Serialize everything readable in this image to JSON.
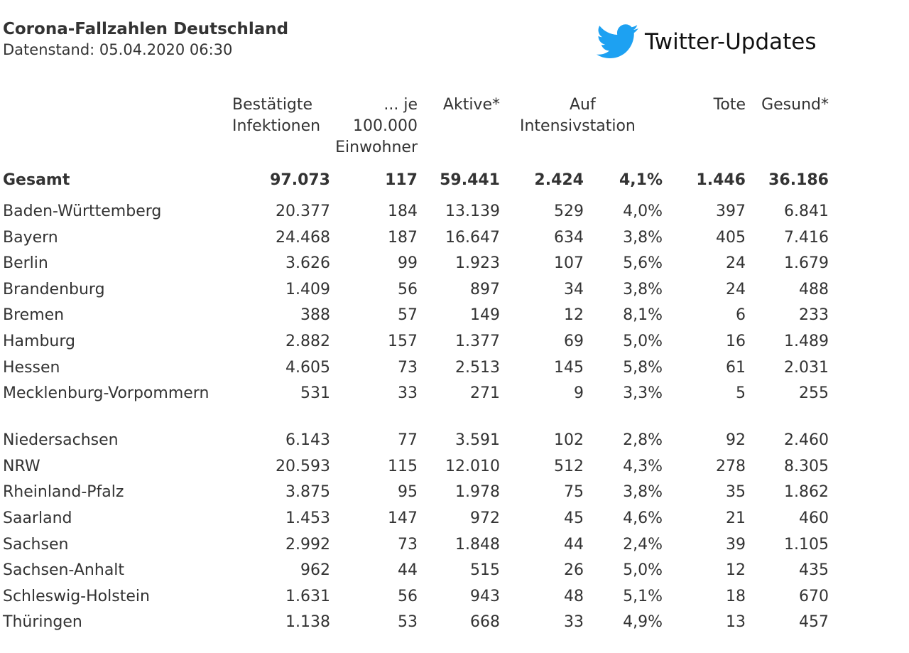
{
  "header": {
    "title": "Corona-Fallzahlen Deutschland",
    "subtitle": "Datenstand: 05.04.2020 06:30"
  },
  "twitter": {
    "label": "Twitter-Updates",
    "icon": "twitter-bird-icon",
    "color": "#1da1f2"
  },
  "table": {
    "columns": {
      "confirmed": [
        "Bestätigte",
        "Infektionen"
      ],
      "per100k": [
        "... je",
        "100.000",
        "Einwohner"
      ],
      "active": "Aktive*",
      "icu": [
        "Auf",
        "Intensivstation"
      ],
      "deaths": "Tote",
      "recovered": "Gesund*"
    },
    "total": {
      "name": "Gesamt",
      "confirmed": "97.073",
      "per100k": "117",
      "active": "59.441",
      "icu": "2.424",
      "icu_pct": "4,1%",
      "deaths": "1.446",
      "recovered": "36.186"
    },
    "rows": [
      {
        "name": "Baden-Württemberg",
        "confirmed": "20.377",
        "per100k": "184",
        "active": "13.139",
        "icu": "529",
        "icu_pct": "4,0%",
        "deaths": "397",
        "recovered": "6.841"
      },
      {
        "name": "Bayern",
        "confirmed": "24.468",
        "per100k": "187",
        "active": "16.647",
        "icu": "634",
        "icu_pct": "3,8%",
        "deaths": "405",
        "recovered": "7.416"
      },
      {
        "name": "Berlin",
        "confirmed": "3.626",
        "per100k": "99",
        "active": "1.923",
        "icu": "107",
        "icu_pct": "5,6%",
        "deaths": "24",
        "recovered": "1.679"
      },
      {
        "name": "Brandenburg",
        "confirmed": "1.409",
        "per100k": "56",
        "active": "897",
        "icu": "34",
        "icu_pct": "3,8%",
        "deaths": "24",
        "recovered": "488"
      },
      {
        "name": "Bremen",
        "confirmed": "388",
        "per100k": "57",
        "active": "149",
        "icu": "12",
        "icu_pct": "8,1%",
        "deaths": "6",
        "recovered": "233"
      },
      {
        "name": "Hamburg",
        "confirmed": "2.882",
        "per100k": "157",
        "active": "1.377",
        "icu": "69",
        "icu_pct": "5,0%",
        "deaths": "16",
        "recovered": "1.489"
      },
      {
        "name": "Hessen",
        "confirmed": "4.605",
        "per100k": "73",
        "active": "2.513",
        "icu": "145",
        "icu_pct": "5,8%",
        "deaths": "61",
        "recovered": "2.031"
      },
      {
        "name": "Mecklenburg-Vorpommern",
        "confirmed": "531",
        "per100k": "33",
        "active": "271",
        "icu": "9",
        "icu_pct": "3,3%",
        "deaths": "5",
        "recovered": "255"
      },
      {
        "name": "Niedersachsen",
        "confirmed": "6.143",
        "per100k": "77",
        "active": "3.591",
        "icu": "102",
        "icu_pct": "2,8%",
        "deaths": "92",
        "recovered": "2.460"
      },
      {
        "name": "NRW",
        "confirmed": "20.593",
        "per100k": "115",
        "active": "12.010",
        "icu": "512",
        "icu_pct": "4,3%",
        "deaths": "278",
        "recovered": "8.305"
      },
      {
        "name": "Rheinland-Pfalz",
        "confirmed": "3.875",
        "per100k": "95",
        "active": "1.978",
        "icu": "75",
        "icu_pct": "3,8%",
        "deaths": "35",
        "recovered": "1.862"
      },
      {
        "name": "Saarland",
        "confirmed": "1.453",
        "per100k": "147",
        "active": "972",
        "icu": "45",
        "icu_pct": "4,6%",
        "deaths": "21",
        "recovered": "460"
      },
      {
        "name": "Sachsen",
        "confirmed": "2.992",
        "per100k": "73",
        "active": "1.848",
        "icu": "44",
        "icu_pct": "2,4%",
        "deaths": "39",
        "recovered": "1.105"
      },
      {
        "name": "Sachsen-Anhalt",
        "confirmed": "962",
        "per100k": "44",
        "active": "515",
        "icu": "26",
        "icu_pct": "5,0%",
        "deaths": "12",
        "recovered": "435"
      },
      {
        "name": "Schleswig-Holstein",
        "confirmed": "1.631",
        "per100k": "56",
        "active": "943",
        "icu": "48",
        "icu_pct": "5,1%",
        "deaths": "18",
        "recovered": "670"
      },
      {
        "name": "Thüringen",
        "confirmed": "1.138",
        "per100k": "53",
        "active": "668",
        "icu": "33",
        "icu_pct": "4,9%",
        "deaths": "13",
        "recovered": "457"
      }
    ]
  }
}
